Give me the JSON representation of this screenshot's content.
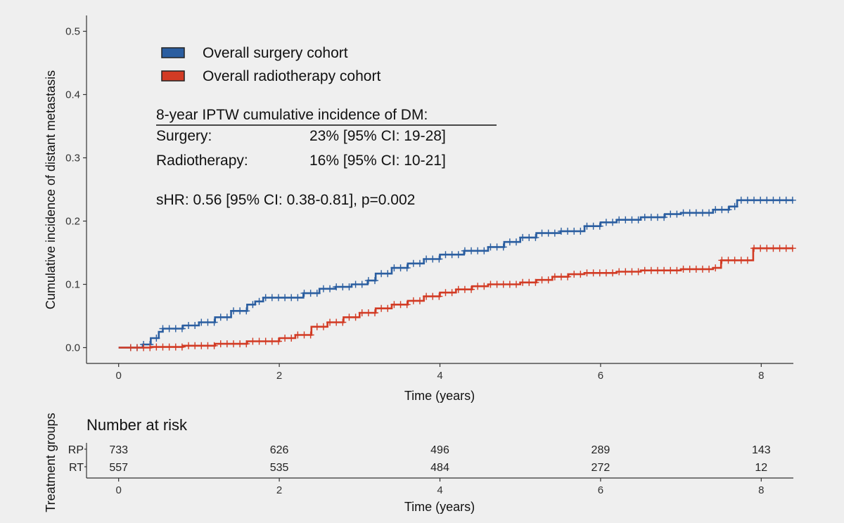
{
  "chart_data": {
    "type": "line",
    "ylabel": "Cumulative incidence of distant metastasis",
    "xlabel": "Time (years)",
    "xlim": [
      -0.4,
      8.4
    ],
    "ylim": [
      -0.025,
      0.525
    ],
    "x_ticks": [
      0,
      2,
      4,
      6,
      8
    ],
    "y_ticks": [
      0.0,
      0.1,
      0.2,
      0.3,
      0.4,
      0.5
    ],
    "y_tick_labels": [
      "0.0",
      "0.1",
      "0.2",
      "0.3",
      "0.4",
      "0.5"
    ],
    "grid": false,
    "legend_position": "top-left",
    "series": [
      {
        "name": "Overall surgery cohort",
        "color": "#2b5ea0",
        "x": [
          0,
          0.3,
          0.4,
          0.5,
          0.55,
          0.8,
          1.0,
          1.2,
          1.4,
          1.6,
          1.7,
          1.8,
          2.0,
          2.3,
          2.5,
          2.7,
          2.9,
          3.1,
          3.2,
          3.4,
          3.6,
          3.8,
          4.0,
          4.3,
          4.6,
          4.8,
          5.0,
          5.2,
          5.5,
          5.8,
          6.0,
          6.2,
          6.5,
          6.8,
          7.0,
          7.2,
          7.4,
          7.6,
          7.7,
          7.9,
          8.4
        ],
        "y": [
          0.0,
          0.005,
          0.015,
          0.025,
          0.03,
          0.035,
          0.04,
          0.048,
          0.058,
          0.068,
          0.073,
          0.079,
          0.079,
          0.086,
          0.093,
          0.096,
          0.1,
          0.106,
          0.117,
          0.126,
          0.133,
          0.14,
          0.147,
          0.153,
          0.159,
          0.167,
          0.174,
          0.181,
          0.184,
          0.192,
          0.198,
          0.202,
          0.206,
          0.211,
          0.213,
          0.213,
          0.218,
          0.223,
          0.233,
          0.233,
          0.233
        ]
      },
      {
        "name": "Overall radiotherapy cohort",
        "color": "#d23b24",
        "x": [
          0,
          0.4,
          0.8,
          1.2,
          1.6,
          2.0,
          2.2,
          2.4,
          2.6,
          2.8,
          3.0,
          3.2,
          3.4,
          3.6,
          3.8,
          4.0,
          4.2,
          4.4,
          4.6,
          4.8,
          5.0,
          5.2,
          5.4,
          5.6,
          5.8,
          6.0,
          6.2,
          6.5,
          6.8,
          7.0,
          7.2,
          7.4,
          7.5,
          7.9,
          8.4
        ],
        "y": [
          0.0,
          0.001,
          0.003,
          0.006,
          0.01,
          0.015,
          0.02,
          0.033,
          0.04,
          0.048,
          0.055,
          0.062,
          0.068,
          0.074,
          0.081,
          0.087,
          0.092,
          0.097,
          0.1,
          0.1,
          0.103,
          0.107,
          0.112,
          0.116,
          0.118,
          0.118,
          0.12,
          0.122,
          0.122,
          0.124,
          0.124,
          0.126,
          0.138,
          0.157,
          0.157
        ]
      }
    ],
    "annotations": {
      "heading": "8-year IPTW cumulative incidence of DM:",
      "rows": [
        {
          "label": "Surgery:",
          "value": "23% [95% CI: 19-28]"
        },
        {
          "label": "Radiotherapy:",
          "value": "16% [95% CI: 10-21]"
        }
      ],
      "shr": "sHR: 0.56 [95% CI: 0.38-0.81], p=0.002"
    },
    "risk_table": {
      "title": "Number at risk",
      "ylabel": "Treatment groups",
      "xlabel": "Time (years)",
      "times": [
        0,
        2,
        4,
        6,
        8
      ],
      "rows": [
        {
          "group": "RP",
          "values": [
            733,
            626,
            496,
            289,
            143
          ]
        },
        {
          "group": "RT",
          "values": [
            557,
            535,
            484,
            272,
            12
          ]
        }
      ]
    }
  }
}
